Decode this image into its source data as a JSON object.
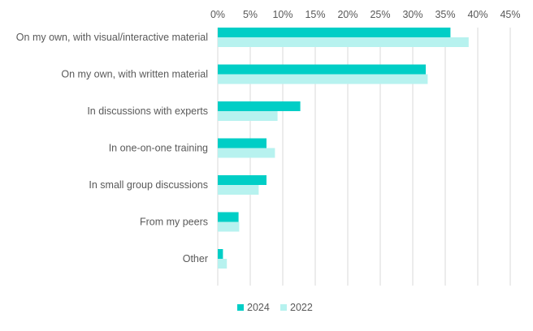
{
  "chart_data": {
    "type": "bar",
    "orientation": "horizontal",
    "categories": [
      "On my own, with visual/interactive material",
      "On my own, with written material",
      "In discussions with experts",
      "In one-on-one training",
      "In small group discussions",
      "From my peers",
      "Other"
    ],
    "series": [
      {
        "name": "2024",
        "color": "#00CEC6",
        "values": [
          35.8,
          32.0,
          12.7,
          7.5,
          7.5,
          3.2,
          0.8
        ]
      },
      {
        "name": "2022",
        "color": "#B7F2EF",
        "values": [
          38.6,
          32.3,
          9.2,
          8.8,
          6.3,
          3.3,
          1.4
        ]
      }
    ],
    "xlim": [
      0,
      45
    ],
    "x_ticks": [
      0,
      5,
      10,
      15,
      20,
      25,
      30,
      35,
      40,
      45
    ],
    "x_tick_labels": [
      "0%",
      "5%",
      "10%",
      "15%",
      "20%",
      "25%",
      "30%",
      "35%",
      "40%",
      "45%"
    ],
    "axis_position": "top",
    "grid": true,
    "grid_color": "#D9D9D9",
    "legend_position": "bottom",
    "title": "",
    "xlabel": "",
    "ylabel": ""
  }
}
